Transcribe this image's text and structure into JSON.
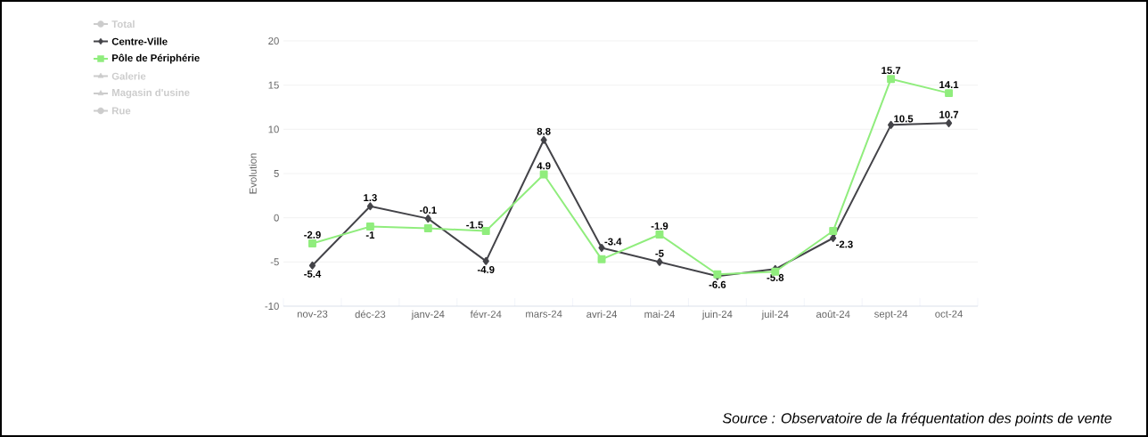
{
  "chart_data": {
    "type": "line",
    "ylabel": "Evolution",
    "categories": [
      "nov-23",
      "déc-23",
      "janv-24",
      "févr-24",
      "mars-24",
      "avri-24",
      "mai-24",
      "juin-24",
      "juil-24",
      "août-24",
      "sept-24",
      "oct-24"
    ],
    "series": [
      {
        "name": "Total",
        "color": "#cccccc",
        "marker": "circle",
        "values": [
          null,
          null,
          null,
          null,
          null,
          null,
          null,
          null,
          null,
          null,
          null,
          null
        ]
      },
      {
        "name": "Centre-Ville",
        "color": "#434348",
        "marker": "diamond",
        "values": [
          -5.4,
          1.3,
          -0.1,
          -4.9,
          8.8,
          -3.4,
          -5,
          -6.6,
          -5.8,
          -2.3,
          10.5,
          10.7
        ],
        "value_labels": [
          "-5.4",
          "1.3",
          "-0.1",
          "-4.9",
          "8.8",
          "-3.4",
          "-5",
          "-6.6",
          "-5.8",
          "-2.3",
          "10.5",
          "10.7"
        ]
      },
      {
        "name": "Pôle de Périphérie",
        "color": "#90ed7d",
        "marker": "square",
        "values": [
          -2.9,
          -1,
          -1.2,
          -1.5,
          4.9,
          -4.7,
          -1.9,
          -6.4,
          -6.1,
          -1.5,
          15.7,
          14.1
        ],
        "value_labels": [
          "-2.9",
          "-1",
          null,
          "-1.5",
          "4.9",
          null,
          "-1.9",
          null,
          null,
          null,
          "15.7",
          "14.1"
        ]
      },
      {
        "name": "Galerie",
        "color": "#cccccc",
        "marker": "triangle",
        "values": [
          null,
          null,
          null,
          null,
          null,
          null,
          null,
          null,
          null,
          null,
          null,
          null
        ]
      },
      {
        "name": "Magasin d'usine",
        "color": "#cccccc",
        "marker": "triangle",
        "values": [
          null,
          null,
          null,
          null,
          null,
          null,
          null,
          null,
          null,
          null,
          null,
          null
        ]
      },
      {
        "name": "Rue",
        "color": "#cccccc",
        "marker": "circle",
        "values": [
          null,
          null,
          null,
          null,
          null,
          null,
          null,
          null,
          null,
          null,
          null,
          null
        ]
      }
    ],
    "ylim": [
      -10,
      20
    ],
    "yticks": [
      -10,
      -5,
      0,
      5,
      10,
      15,
      20
    ],
    "grid": "y",
    "legend": "top left",
    "annotations": [
      "Source : Observatoire de la fréquentation des points de vente"
    ]
  }
}
